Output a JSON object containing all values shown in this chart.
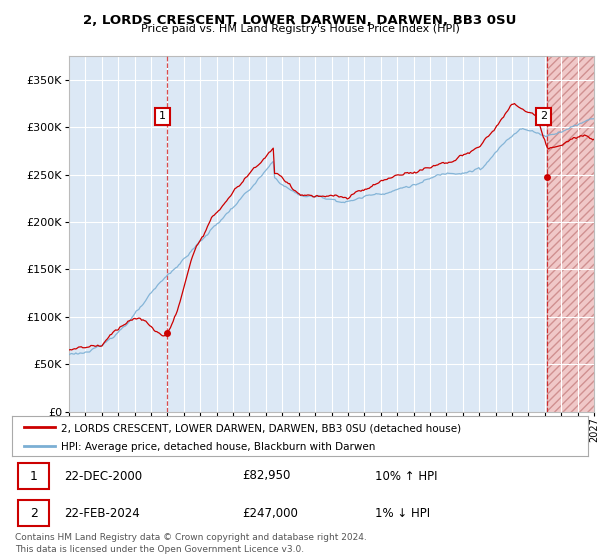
{
  "title_line1": "2, LORDS CRESCENT, LOWER DARWEN, DARWEN, BB3 0SU",
  "title_line2": "Price paid vs. HM Land Registry's House Price Index (HPI)",
  "legend_label1": "2, LORDS CRESCENT, LOWER DARWEN, DARWEN, BB3 0SU (detached house)",
  "legend_label2": "HPI: Average price, detached house, Blackburn with Darwen",
  "annotation1_date": "22-DEC-2000",
  "annotation1_price": "£82,950",
  "annotation1_hpi": "10% ↑ HPI",
  "annotation2_date": "22-FEB-2024",
  "annotation2_price": "£247,000",
  "annotation2_hpi": "1% ↓ HPI",
  "footer": "Contains HM Land Registry data © Crown copyright and database right 2024.\nThis data is licensed under the Open Government Licence v3.0.",
  "property_color": "#cc0000",
  "hpi_color": "#7bafd4",
  "background_color": "#ffffff",
  "plot_bg_color": "#dce8f5",
  "grid_color": "#ffffff",
  "ylim": [
    0,
    375000
  ],
  "yticks": [
    0,
    50000,
    100000,
    150000,
    200000,
    250000,
    300000,
    350000
  ],
  "ytick_labels": [
    "£0",
    "£50K",
    "£100K",
    "£150K",
    "£200K",
    "£250K",
    "£300K",
    "£350K"
  ],
  "sale1_year": 2001.0,
  "sale1_price": 82950,
  "sale2_year": 2024.14,
  "sale2_price": 247000,
  "xmin": 1995,
  "xmax": 2027,
  "xtick_start": 1995,
  "xtick_end": 2027
}
